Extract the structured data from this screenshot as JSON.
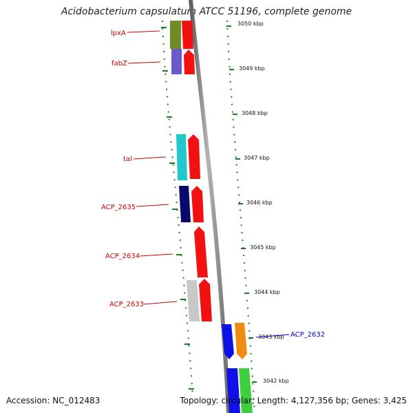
{
  "title": "Acidobacterium capsulatum ATCC 51196, complete genome",
  "accession": "Accession: NC_012483",
  "genome_info": "Topology: circular; Length: 4,127,356 bp; Genes: 3,425",
  "colors": {
    "label_red": "#cc0000",
    "label_blue": "#0000cc",
    "tick_green": "#1a7a1a",
    "backbone": "#8a8a8a"
  },
  "scale_labels": [
    "3050 kbp",
    "3049 kbp",
    "3048 kbp",
    "3047 kbp",
    "3046 kbp",
    "3045 kbp",
    "3044 kbp",
    "3043 kbp",
    "3042 kbp"
  ],
  "gene_labels": [
    {
      "name": "lpxA",
      "color": "#cc0000"
    },
    {
      "name": "fabZ",
      "color": "#cc0000"
    },
    {
      "name": "tal",
      "color": "#cc0000"
    },
    {
      "name": "ACP_2635",
      "color": "#cc0000"
    },
    {
      "name": "ACP_2634",
      "color": "#cc0000"
    },
    {
      "name": "ACP_2633",
      "color": "#cc0000"
    },
    {
      "name": "ACP_2632",
      "color": "#0000cc"
    }
  ]
}
